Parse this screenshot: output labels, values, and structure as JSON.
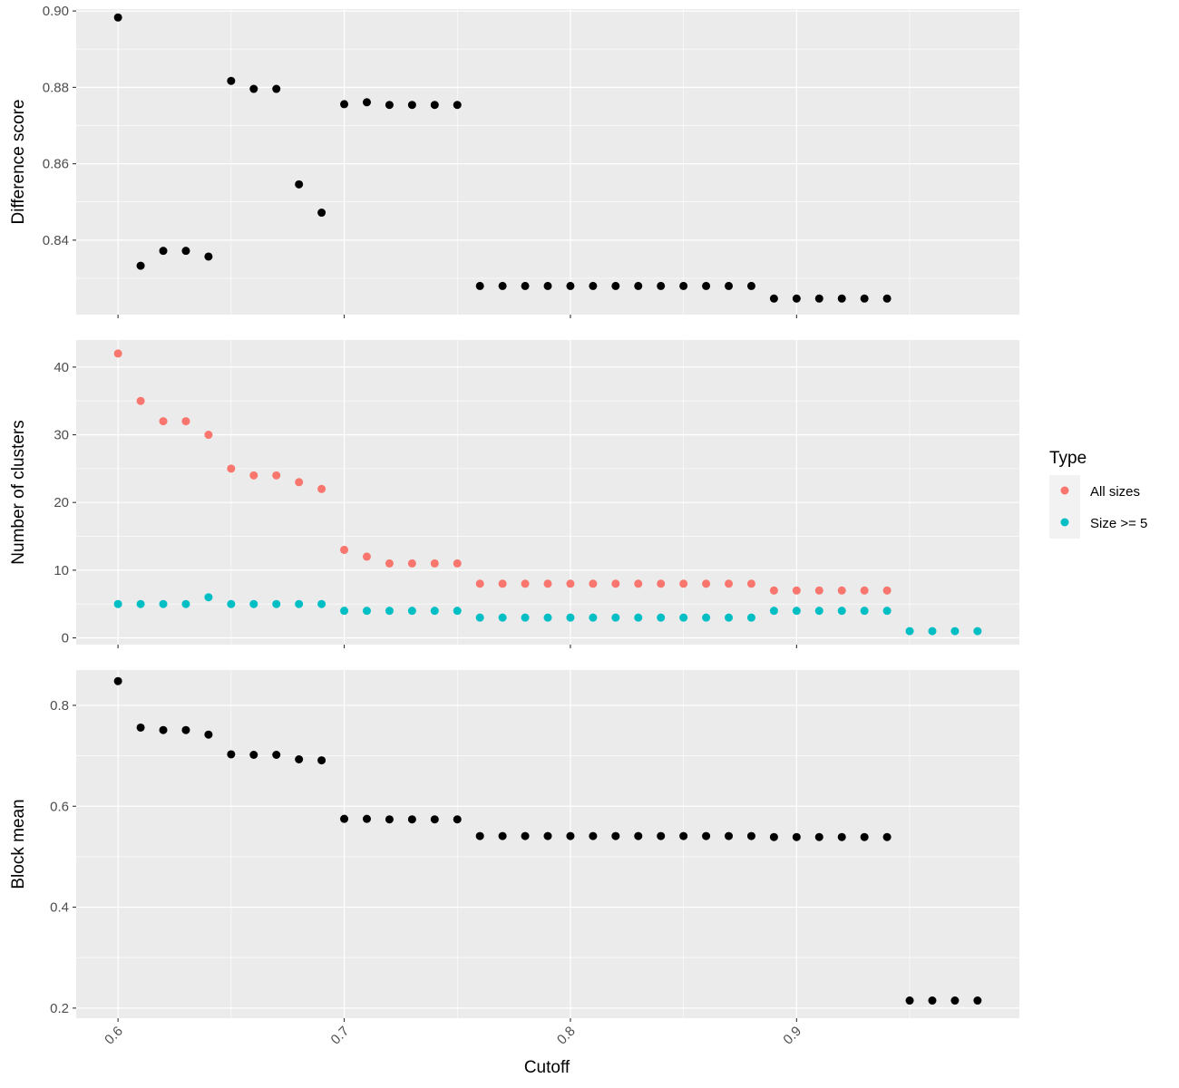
{
  "chart_data": [
    {
      "type": "scatter",
      "ylabel": "Difference score",
      "ylim": [
        0.8205,
        0.9005
      ],
      "yticks": [
        0.84,
        0.86,
        0.88,
        0.9
      ],
      "ytick_labels": [
        "0.84",
        "0.86",
        "0.88",
        "0.90"
      ],
      "series": [
        {
          "color": "#000000",
          "x": [
            0.6,
            0.61,
            0.62,
            0.63,
            0.64,
            0.65,
            0.66,
            0.67,
            0.68,
            0.69,
            0.7,
            0.71,
            0.72,
            0.73,
            0.74,
            0.75,
            0.76,
            0.77,
            0.78,
            0.79,
            0.8,
            0.81,
            0.82,
            0.83,
            0.84,
            0.85,
            0.86,
            0.87,
            0.88,
            0.89,
            0.9,
            0.91,
            0.92,
            0.93,
            0.94
          ],
          "y": [
            0.8983,
            0.8333,
            0.8372,
            0.8372,
            0.8357,
            0.8817,
            0.8796,
            0.8796,
            0.8546,
            0.8472,
            0.8756,
            0.8761,
            0.8754,
            0.8754,
            0.8754,
            0.8754,
            0.828,
            0.828,
            0.828,
            0.828,
            0.828,
            0.828,
            0.828,
            0.828,
            0.828,
            0.828,
            0.828,
            0.828,
            0.828,
            0.8247,
            0.8247,
            0.8247,
            0.8247,
            0.8247,
            0.8247
          ]
        }
      ]
    },
    {
      "type": "scatter",
      "ylabel": "Number of clusters",
      "ylim": [
        -1,
        44
      ],
      "yticks": [
        0,
        10,
        20,
        30,
        40
      ],
      "ytick_labels": [
        "0",
        "10",
        "20",
        "30",
        "40"
      ],
      "series": [
        {
          "name": "All sizes",
          "color": "#F8766D",
          "x": [
            0.6,
            0.61,
            0.62,
            0.63,
            0.64,
            0.65,
            0.66,
            0.67,
            0.68,
            0.69,
            0.7,
            0.71,
            0.72,
            0.73,
            0.74,
            0.75,
            0.76,
            0.77,
            0.78,
            0.79,
            0.8,
            0.81,
            0.82,
            0.83,
            0.84,
            0.85,
            0.86,
            0.87,
            0.88,
            0.89,
            0.9,
            0.91,
            0.92,
            0.93,
            0.94
          ],
          "y": [
            42,
            35,
            32,
            32,
            30,
            25,
            24,
            24,
            23,
            22,
            13,
            12,
            11,
            11,
            11,
            11,
            8,
            8,
            8,
            8,
            8,
            8,
            8,
            8,
            8,
            8,
            8,
            8,
            8,
            7,
            7,
            7,
            7,
            7,
            7
          ]
        },
        {
          "name": "Size >= 5",
          "color": "#00BFC4",
          "x": [
            0.6,
            0.61,
            0.62,
            0.63,
            0.64,
            0.65,
            0.66,
            0.67,
            0.68,
            0.69,
            0.7,
            0.71,
            0.72,
            0.73,
            0.74,
            0.75,
            0.76,
            0.77,
            0.78,
            0.79,
            0.8,
            0.81,
            0.82,
            0.83,
            0.84,
            0.85,
            0.86,
            0.87,
            0.88,
            0.89,
            0.9,
            0.91,
            0.92,
            0.93,
            0.94,
            0.95,
            0.96,
            0.97,
            0.98
          ],
          "y": [
            5,
            5,
            5,
            5,
            6,
            5,
            5,
            5,
            5,
            5,
            4,
            4,
            4,
            4,
            4,
            4,
            3,
            3,
            3,
            3,
            3,
            3,
            3,
            3,
            3,
            3,
            3,
            3,
            3,
            4,
            4,
            4,
            4,
            4,
            4,
            1,
            1,
            1,
            1
          ]
        }
      ]
    },
    {
      "type": "scatter",
      "ylabel": "Block mean",
      "ylim": [
        0.18,
        0.87
      ],
      "yticks": [
        0.2,
        0.4,
        0.6,
        0.8
      ],
      "ytick_labels": [
        "0.2",
        "0.4",
        "0.6",
        "0.8"
      ],
      "series": [
        {
          "color": "#000000",
          "x": [
            0.6,
            0.61,
            0.62,
            0.63,
            0.64,
            0.65,
            0.66,
            0.67,
            0.68,
            0.69,
            0.7,
            0.71,
            0.72,
            0.73,
            0.74,
            0.75,
            0.76,
            0.77,
            0.78,
            0.79,
            0.8,
            0.81,
            0.82,
            0.83,
            0.84,
            0.85,
            0.86,
            0.87,
            0.88,
            0.89,
            0.9,
            0.91,
            0.92,
            0.93,
            0.94,
            0.95,
            0.96,
            0.97,
            0.98
          ],
          "y": [
            0.848,
            0.756,
            0.751,
            0.751,
            0.742,
            0.703,
            0.702,
            0.702,
            0.693,
            0.691,
            0.575,
            0.575,
            0.574,
            0.574,
            0.574,
            0.574,
            0.541,
            0.541,
            0.541,
            0.541,
            0.541,
            0.541,
            0.541,
            0.541,
            0.541,
            0.541,
            0.541,
            0.541,
            0.541,
            0.539,
            0.539,
            0.539,
            0.539,
            0.539,
            0.539,
            0.215,
            0.215,
            0.215,
            0.215
          ]
        }
      ]
    }
  ],
  "x_axis": {
    "label": "Cutoff",
    "xlim": [
      0.5815,
      0.9985
    ],
    "ticks": [
      0.6,
      0.7,
      0.8,
      0.9
    ],
    "tick_labels": [
      "0.6",
      "0.7",
      "0.8",
      "0.9"
    ]
  },
  "legend": {
    "title": "Type",
    "position": "right",
    "entries": [
      {
        "label": "All sizes",
        "color": "#F8766D"
      },
      {
        "label": "Size >= 5",
        "color": "#00BFC4"
      }
    ]
  },
  "theme": {
    "panel_background": "#EBEBEB",
    "grid_color": "#FFFFFF"
  }
}
